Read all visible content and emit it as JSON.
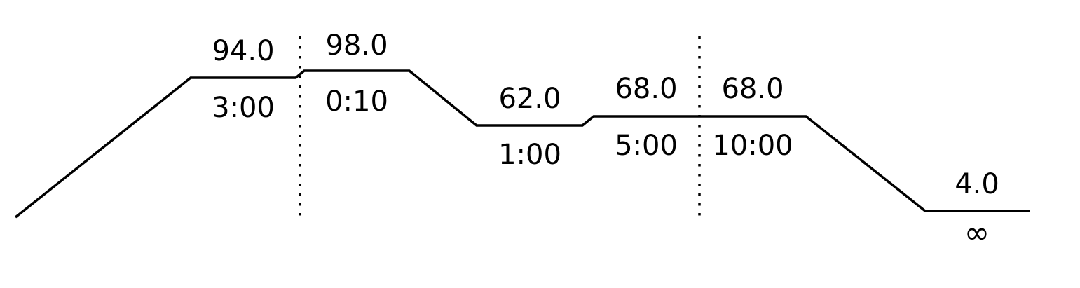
{
  "line_color": "#000000",
  "background_color": "#ffffff",
  "program": {
    "steps": [
      {
        "temp": "94.0",
        "time": "3:00"
      },
      {
        "temp": "98.0",
        "time": "0:10"
      },
      {
        "temp": "62.0",
        "time": "1:00"
      },
      {
        "temp": "68.0",
        "time": "5:00"
      },
      {
        "temp": "68.0",
        "time": "10:00"
      },
      {
        "temp": "4.0",
        "time": "∞"
      }
    ]
  }
}
